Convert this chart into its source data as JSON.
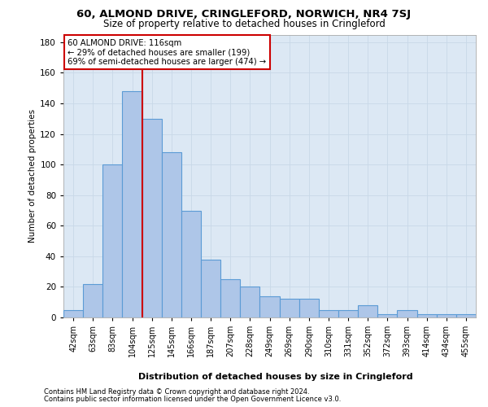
{
  "title_line1": "60, ALMOND DRIVE, CRINGLEFORD, NORWICH, NR4 7SJ",
  "title_line2": "Size of property relative to detached houses in Cringleford",
  "xlabel": "Distribution of detached houses by size in Cringleford",
  "ylabel": "Number of detached properties",
  "categories": [
    "42sqm",
    "63sqm",
    "83sqm",
    "104sqm",
    "125sqm",
    "145sqm",
    "166sqm",
    "187sqm",
    "207sqm",
    "228sqm",
    "249sqm",
    "269sqm",
    "290sqm",
    "310sqm",
    "331sqm",
    "352sqm",
    "372sqm",
    "393sqm",
    "414sqm",
    "434sqm",
    "455sqm"
  ],
  "values": [
    5,
    22,
    100,
    148,
    130,
    108,
    70,
    38,
    25,
    20,
    14,
    12,
    12,
    5,
    5,
    8,
    2,
    5,
    2,
    2,
    2
  ],
  "bar_color": "#aec6e8",
  "bar_edge_color": "#5b9bd5",
  "bar_linewidth": 0.8,
  "redline_index": 3,
  "redline_label": "60 ALMOND DRIVE: 116sqm",
  "annotation_line2": "← 29% of detached houses are smaller (199)",
  "annotation_line3": "69% of semi-detached houses are larger (474) →",
  "annotation_box_color": "#ffffff",
  "annotation_box_edgecolor": "#cc0000",
  "redline_color": "#cc0000",
  "grid_color": "#c8d8e8",
  "background_color": "#dce8f4",
  "ylim": [
    0,
    185
  ],
  "yticks": [
    0,
    20,
    40,
    60,
    80,
    100,
    120,
    140,
    160,
    180
  ],
  "footer_line1": "Contains HM Land Registry data © Crown copyright and database right 2024.",
  "footer_line2": "Contains public sector information licensed under the Open Government Licence v3.0."
}
